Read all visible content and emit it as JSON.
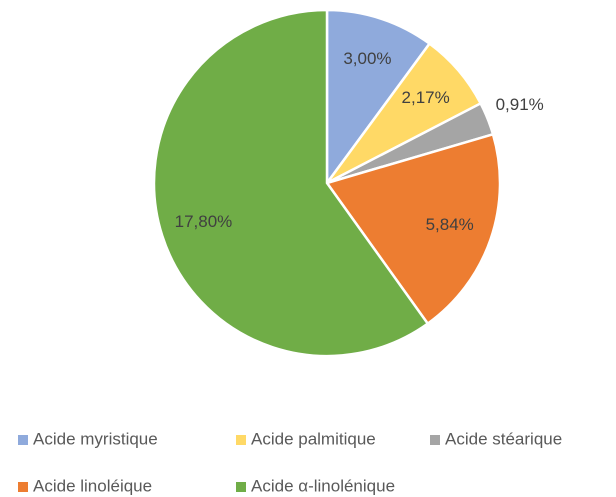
{
  "chart_data": {
    "type": "pie",
    "categories": [
      "Acide myristique",
      "Acide palmitique",
      "Acide stéarique",
      "Acide linoléique",
      "Acide α-linolénique"
    ],
    "values": [
      3.0,
      2.17,
      0.91,
      5.84,
      17.8
    ],
    "value_labels": [
      "3,00%",
      "2,17%",
      "0,91%",
      "5,84%",
      "17,80%"
    ],
    "colors": [
      "#8faadc",
      "#ffd966",
      "#a5a5a5",
      "#ed7d31",
      "#70ad47"
    ],
    "legend": "bottom"
  }
}
